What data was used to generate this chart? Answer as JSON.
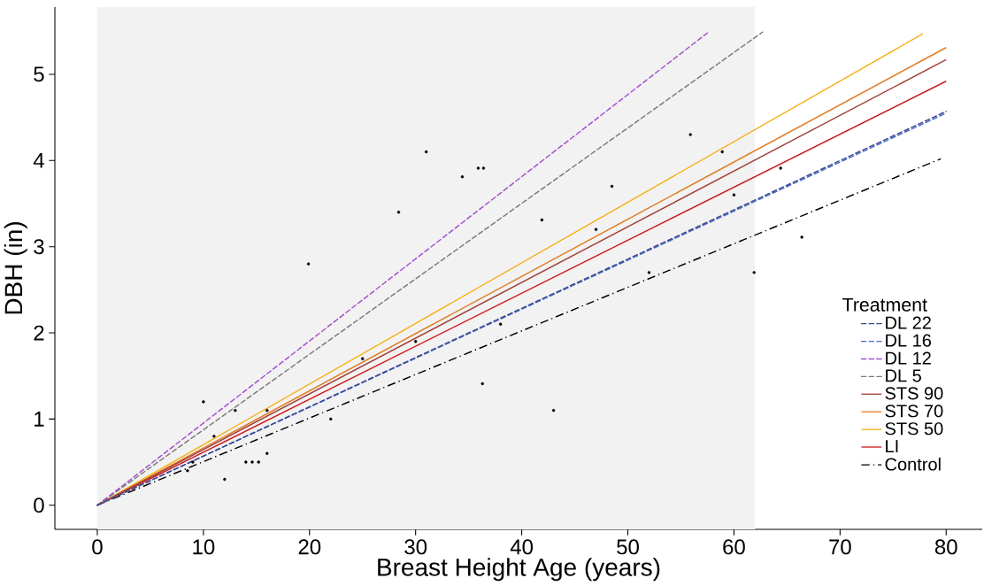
{
  "chart_data": {
    "type": "line",
    "xlabel": "Breast Height Age (years)",
    "ylabel": "DBH (in)",
    "legend_title": "Treatment",
    "legend": "right",
    "xlim": [
      -4,
      83.4
    ],
    "ylim": [
      -0.28,
      5.78
    ],
    "xticks": [
      0,
      10,
      20,
      30,
      40,
      50,
      60,
      70,
      80
    ],
    "yticks": [
      0,
      1,
      2,
      3,
      4,
      5
    ],
    "grid": false,
    "bands": [
      {
        "axis": "x",
        "from": 0,
        "to": 62,
        "color": "#f2f2f2"
      }
    ],
    "series": [
      {
        "name": "DL 22",
        "color": "#3b4a8c",
        "line_style": "dashed",
        "x": [
          0,
          80
        ],
        "values": [
          0,
          4.57
        ]
      },
      {
        "name": "DL 16",
        "color": "#4a6cc8",
        "line_style": "dashed",
        "x": [
          0,
          80
        ],
        "values": [
          0,
          4.55
        ]
      },
      {
        "name": "DL 12",
        "color": "#a64fd0",
        "line_style": "dashed",
        "x": [
          0,
          57.5
        ],
        "values": [
          0,
          5.48
        ]
      },
      {
        "name": "DL 5",
        "color": "#7a7a7a",
        "line_style": "dashed",
        "x": [
          0,
          62.7
        ],
        "values": [
          0,
          5.49
        ]
      },
      {
        "name": "STS 90",
        "color": "#a0403a",
        "line_style": "solid",
        "x": [
          0,
          80
        ],
        "values": [
          0,
          5.17
        ]
      },
      {
        "name": "STS 70",
        "color": "#e07b20",
        "line_style": "solid",
        "x": [
          0,
          80
        ],
        "values": [
          0,
          5.31
        ]
      },
      {
        "name": "STS 50",
        "color": "#f5b21a",
        "line_style": "solid",
        "x": [
          0,
          77.8
        ],
        "values": [
          0,
          5.47
        ]
      },
      {
        "name": "LI",
        "color": "#d01c1c",
        "line_style": "solid",
        "x": [
          0,
          80
        ],
        "values": [
          0,
          4.92
        ]
      },
      {
        "name": "Control",
        "color": "#000000",
        "line_style": "dashdot",
        "x": [
          0,
          79.5
        ],
        "values": [
          0,
          4.02
        ]
      },
      {
        "type": "scatter",
        "color": "#000000",
        "x": [
          31.0,
          35.9,
          36.4,
          34.4,
          28.4,
          19.9,
          10.0,
          36.3,
          43.0,
          41.9,
          48.5,
          55.9,
          58.9,
          61.9,
          66.4,
          64.4,
          12.0,
          14.0,
          14.6,
          15.2,
          16.0,
          11.0,
          13.0,
          16.0,
          25.0,
          22.0,
          9.0,
          8.5,
          30.0,
          38.0,
          47.0,
          52.0,
          60.0
        ],
        "values": [
          4.1,
          3.91,
          3.91,
          3.81,
          3.4,
          2.8,
          1.2,
          1.41,
          1.1,
          3.31,
          3.7,
          4.3,
          4.1,
          2.7,
          3.11,
          3.91,
          0.3,
          0.5,
          0.5,
          0.5,
          0.6,
          0.8,
          1.1,
          1.1,
          1.7,
          1.0,
          0.5,
          0.4,
          1.9,
          2.1,
          3.2,
          2.7,
          3.6
        ]
      }
    ]
  }
}
